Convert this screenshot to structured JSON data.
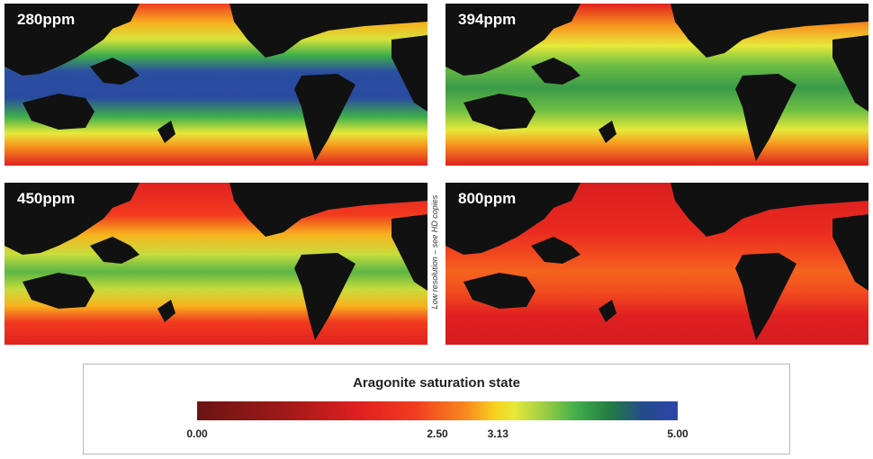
{
  "panels": [
    {
      "label": "280ppm"
    },
    {
      "label": "394ppm"
    },
    {
      "label": "450ppm"
    },
    {
      "label": "800ppm"
    }
  ],
  "side_note": "Low resolution – see HD copies",
  "legend": {
    "title": "Aragonite saturation state",
    "min": 0.0,
    "max": 5.0,
    "ticks": [
      {
        "value": 0.0,
        "text": "0.00"
      },
      {
        "value": 2.5,
        "text": "2.50"
      },
      {
        "value": 3.13,
        "text": "3.13"
      },
      {
        "value": 5.0,
        "text": "5.00"
      }
    ],
    "colors": [
      "#6b1414",
      "#e02020",
      "#f78a1e",
      "#f7d21e",
      "#3fae4a",
      "#2e46a8"
    ]
  },
  "colors": {
    "land": "#111111",
    "ocean_low": "#e02020",
    "ocean_mid": "#f7d21e",
    "ocean_green": "#3fae4a",
    "ocean_high": "#2e46a8"
  }
}
